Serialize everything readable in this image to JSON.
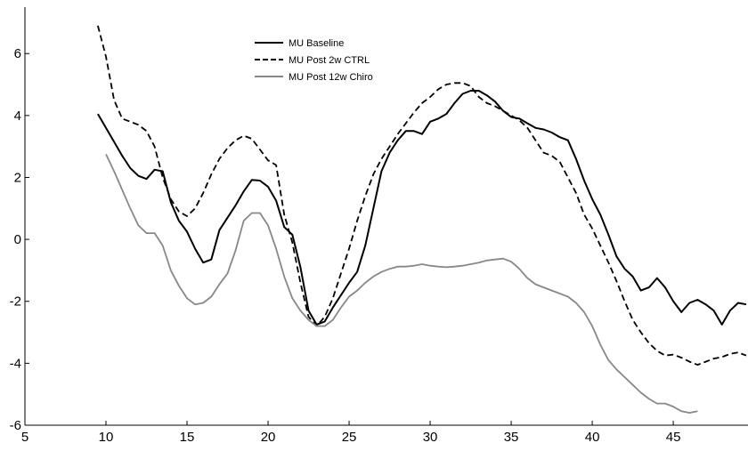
{
  "chart_data": {
    "type": "line",
    "title": "",
    "xlabel": "",
    "ylabel": "",
    "xlim": [
      5,
      49.5
    ],
    "ylim": [
      -6,
      7.5
    ],
    "x_ticks": [
      5,
      10,
      15,
      20,
      25,
      30,
      35,
      40,
      45
    ],
    "y_ticks": [
      -6,
      -4,
      -2,
      0,
      2,
      4,
      6
    ],
    "grid": false,
    "legend": {
      "position": "top-center",
      "entries": [
        "MU Baseline",
        "MU Post 2w CTRL",
        "MU Post 12w Chiro"
      ]
    },
    "series": [
      {
        "name": "MU Baseline",
        "color": "#000000",
        "dash": "solid",
        "points": [
          [
            9.5,
            4.05
          ],
          [
            10,
            3.6
          ],
          [
            10.5,
            3.15
          ],
          [
            11,
            2.7
          ],
          [
            11.5,
            2.3
          ],
          [
            12,
            2.05
          ],
          [
            12.5,
            1.95
          ],
          [
            13,
            2.25
          ],
          [
            13.5,
            2.2
          ],
          [
            14,
            1.2
          ],
          [
            14.5,
            0.6
          ],
          [
            15,
            0.25
          ],
          [
            15.5,
            -0.3
          ],
          [
            16,
            -0.75
          ],
          [
            16.5,
            -0.65
          ],
          [
            17,
            0.3
          ],
          [
            17.5,
            0.7
          ],
          [
            18,
            1.1
          ],
          [
            18.5,
            1.55
          ],
          [
            19,
            1.92
          ],
          [
            19.5,
            1.9
          ],
          [
            20,
            1.7
          ],
          [
            20.5,
            1.25
          ],
          [
            21,
            0.4
          ],
          [
            21.5,
            0.15
          ],
          [
            22,
            -0.9
          ],
          [
            22.5,
            -2.3
          ],
          [
            23,
            -2.75
          ],
          [
            23.5,
            -2.65
          ],
          [
            24,
            -2.2
          ],
          [
            24.5,
            -1.8
          ],
          [
            25,
            -1.4
          ],
          [
            25.5,
            -1.05
          ],
          [
            26,
            -0.2
          ],
          [
            26.5,
            1.0
          ],
          [
            27,
            2.2
          ],
          [
            27.5,
            2.8
          ],
          [
            28,
            3.2
          ],
          [
            28.5,
            3.5
          ],
          [
            29,
            3.5
          ],
          [
            29.5,
            3.4
          ],
          [
            30,
            3.8
          ],
          [
            30.5,
            3.9
          ],
          [
            31,
            4.05
          ],
          [
            31.5,
            4.4
          ],
          [
            32,
            4.7
          ],
          [
            32.5,
            4.8
          ],
          [
            33,
            4.8
          ],
          [
            33.5,
            4.65
          ],
          [
            34,
            4.45
          ],
          [
            34.5,
            4.15
          ],
          [
            35,
            3.95
          ],
          [
            35.5,
            3.9
          ],
          [
            36,
            3.75
          ],
          [
            36.5,
            3.6
          ],
          [
            37,
            3.55
          ],
          [
            37.5,
            3.45
          ],
          [
            38,
            3.3
          ],
          [
            38.5,
            3.2
          ],
          [
            39,
            2.6
          ],
          [
            39.5,
            1.9
          ],
          [
            40,
            1.3
          ],
          [
            40.5,
            0.8
          ],
          [
            41,
            0.15
          ],
          [
            41.5,
            -0.55
          ],
          [
            42,
            -0.95
          ],
          [
            42.5,
            -1.2
          ],
          [
            43,
            -1.65
          ],
          [
            43.5,
            -1.55
          ],
          [
            44,
            -1.25
          ],
          [
            44.5,
            -1.55
          ],
          [
            45,
            -2.0
          ],
          [
            45.5,
            -2.35
          ],
          [
            46,
            -2.05
          ],
          [
            46.5,
            -1.95
          ],
          [
            47,
            -2.1
          ],
          [
            47.5,
            -2.3
          ],
          [
            48,
            -2.75
          ],
          [
            48.5,
            -2.3
          ],
          [
            49,
            -2.05
          ],
          [
            49.5,
            -2.1
          ]
        ]
      },
      {
        "name": "MU Post 2w CTRL",
        "color": "#000000",
        "dash": "dashed",
        "points": [
          [
            9.5,
            6.9
          ],
          [
            10,
            5.9
          ],
          [
            10.5,
            4.5
          ],
          [
            11,
            3.9
          ],
          [
            11.5,
            3.8
          ],
          [
            12,
            3.7
          ],
          [
            12.5,
            3.5
          ],
          [
            13,
            3.0
          ],
          [
            13.5,
            2.0
          ],
          [
            14,
            1.3
          ],
          [
            14.5,
            0.9
          ],
          [
            15,
            0.75
          ],
          [
            15.5,
            1.0
          ],
          [
            16,
            1.5
          ],
          [
            16.5,
            2.1
          ],
          [
            17,
            2.6
          ],
          [
            17.5,
            2.95
          ],
          [
            18,
            3.2
          ],
          [
            18.5,
            3.35
          ],
          [
            19,
            3.25
          ],
          [
            19.5,
            2.9
          ],
          [
            20,
            2.55
          ],
          [
            20.5,
            2.4
          ],
          [
            21,
            0.8
          ],
          [
            21.5,
            -0.1
          ],
          [
            22,
            -1.4
          ],
          [
            22.5,
            -2.5
          ],
          [
            23,
            -2.8
          ],
          [
            23.5,
            -2.5
          ],
          [
            24,
            -1.9
          ],
          [
            24.5,
            -1.1
          ],
          [
            25,
            -0.3
          ],
          [
            25.5,
            0.6
          ],
          [
            26,
            1.4
          ],
          [
            26.5,
            2.1
          ],
          [
            27,
            2.6
          ],
          [
            27.5,
            3.0
          ],
          [
            28,
            3.4
          ],
          [
            28.5,
            3.75
          ],
          [
            29,
            4.1
          ],
          [
            29.5,
            4.4
          ],
          [
            30,
            4.6
          ],
          [
            30.5,
            4.85
          ],
          [
            31,
            5.0
          ],
          [
            31.5,
            5.05
          ],
          [
            32,
            5.05
          ],
          [
            32.5,
            4.95
          ],
          [
            33,
            4.6
          ],
          [
            33.5,
            4.4
          ],
          [
            34,
            4.3
          ],
          [
            34.5,
            4.15
          ],
          [
            35,
            4.0
          ],
          [
            35.5,
            3.85
          ],
          [
            36,
            3.6
          ],
          [
            36.5,
            3.2
          ],
          [
            37,
            2.8
          ],
          [
            37.5,
            2.7
          ],
          [
            38,
            2.5
          ],
          [
            38.5,
            2.0
          ],
          [
            39,
            1.5
          ],
          [
            39.5,
            0.8
          ],
          [
            40,
            0.35
          ],
          [
            40.5,
            -0.2
          ],
          [
            41,
            -0.75
          ],
          [
            41.5,
            -1.35
          ],
          [
            42,
            -2.0
          ],
          [
            42.5,
            -2.6
          ],
          [
            43,
            -3.0
          ],
          [
            43.5,
            -3.35
          ],
          [
            44,
            -3.6
          ],
          [
            44.5,
            -3.75
          ],
          [
            45,
            -3.72
          ],
          [
            45.5,
            -3.82
          ],
          [
            46,
            -3.95
          ],
          [
            46.5,
            -4.05
          ],
          [
            47,
            -3.95
          ],
          [
            47.5,
            -3.85
          ],
          [
            48,
            -3.8
          ],
          [
            48.5,
            -3.7
          ],
          [
            49,
            -3.65
          ],
          [
            49.5,
            -3.75
          ]
        ]
      },
      {
        "name": "MU Post 12w Chiro",
        "color": "#888888",
        "dash": "solid",
        "points": [
          [
            10,
            2.75
          ],
          [
            10.5,
            2.2
          ],
          [
            11,
            1.6
          ],
          [
            11.5,
            1.0
          ],
          [
            12,
            0.45
          ],
          [
            12.5,
            0.2
          ],
          [
            13,
            0.2
          ],
          [
            13.5,
            -0.2
          ],
          [
            14,
            -1.0
          ],
          [
            14.5,
            -1.5
          ],
          [
            15,
            -1.9
          ],
          [
            15.5,
            -2.1
          ],
          [
            16,
            -2.05
          ],
          [
            16.5,
            -1.85
          ],
          [
            17,
            -1.45
          ],
          [
            17.5,
            -1.1
          ],
          [
            18,
            -0.35
          ],
          [
            18.5,
            0.6
          ],
          [
            19,
            0.85
          ],
          [
            19.5,
            0.85
          ],
          [
            20,
            0.45
          ],
          [
            20.5,
            -0.3
          ],
          [
            21,
            -1.2
          ],
          [
            21.5,
            -1.9
          ],
          [
            22,
            -2.3
          ],
          [
            22.5,
            -2.6
          ],
          [
            23,
            -2.8
          ],
          [
            23.5,
            -2.8
          ],
          [
            24,
            -2.6
          ],
          [
            24.5,
            -2.2
          ],
          [
            25,
            -1.85
          ],
          [
            25.5,
            -1.65
          ],
          [
            26,
            -1.4
          ],
          [
            26.5,
            -1.2
          ],
          [
            27,
            -1.05
          ],
          [
            27.5,
            -0.95
          ],
          [
            28,
            -0.88
          ],
          [
            28.5,
            -0.88
          ],
          [
            29,
            -0.85
          ],
          [
            29.5,
            -0.8
          ],
          [
            30,
            -0.85
          ],
          [
            30.5,
            -0.88
          ],
          [
            31,
            -0.9
          ],
          [
            31.5,
            -0.88
          ],
          [
            32,
            -0.85
          ],
          [
            32.5,
            -0.8
          ],
          [
            33,
            -0.75
          ],
          [
            33.5,
            -0.68
          ],
          [
            34,
            -0.65
          ],
          [
            34.5,
            -0.62
          ],
          [
            35,
            -0.72
          ],
          [
            35.5,
            -0.95
          ],
          [
            36,
            -1.25
          ],
          [
            36.5,
            -1.45
          ],
          [
            37,
            -1.55
          ],
          [
            37.5,
            -1.65
          ],
          [
            38,
            -1.75
          ],
          [
            38.5,
            -1.85
          ],
          [
            39,
            -2.05
          ],
          [
            39.5,
            -2.35
          ],
          [
            40,
            -2.8
          ],
          [
            40.5,
            -3.4
          ],
          [
            41,
            -3.9
          ],
          [
            41.5,
            -4.2
          ],
          [
            42,
            -4.45
          ],
          [
            42.5,
            -4.7
          ],
          [
            43,
            -4.95
          ],
          [
            43.5,
            -5.15
          ],
          [
            44,
            -5.3
          ],
          [
            44.5,
            -5.3
          ],
          [
            45,
            -5.4
          ],
          [
            45.5,
            -5.55
          ],
          [
            46,
            -5.6
          ],
          [
            46.5,
            -5.55
          ]
        ]
      }
    ]
  }
}
